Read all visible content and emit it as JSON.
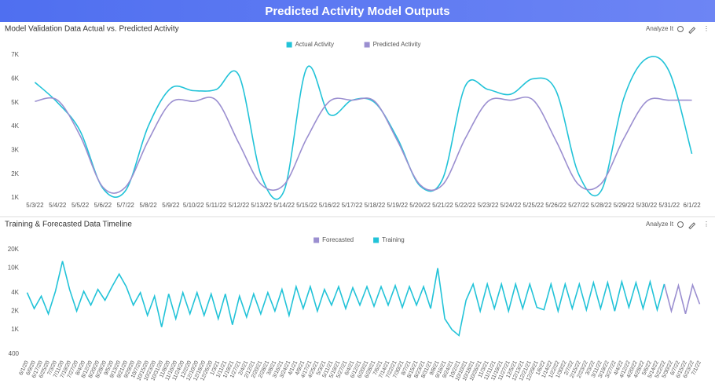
{
  "header": {
    "title": "Predicted Activity Model Outputs"
  },
  "toolbar": {
    "analyze": "Analyze It"
  },
  "chart_data": [
    {
      "type": "line",
      "title": "Model Validation Data Actual vs. Predicted Activity",
      "smooth": true,
      "grid": false,
      "categories": [
        "5/3/22",
        "5/4/22",
        "5/5/22",
        "5/6/22",
        "5/7/22",
        "5/8/22",
        "5/9/22",
        "5/10/22",
        "5/11/22",
        "5/12/22",
        "5/13/22",
        "5/14/22",
        "5/15/22",
        "5/16/22",
        "5/17/22",
        "5/18/22",
        "5/19/22",
        "5/20/22",
        "5/21/22",
        "5/22/22",
        "5/23/22",
        "5/24/22",
        "5/25/22",
        "5/26/22",
        "5/27/22",
        "5/28/22",
        "5/29/22",
        "5/30/22",
        "5/31/22",
        "6/1/22"
      ],
      "series": [
        {
          "name": "Actual Activity",
          "color": "#22c3d8",
          "values": [
            5850,
            5000,
            3800,
            1400,
            1300,
            4000,
            5600,
            5500,
            5550,
            6150,
            1900,
            1300,
            6450,
            4500,
            5100,
            5000,
            3500,
            1500,
            1800,
            5700,
            5550,
            5350,
            6000,
            5500,
            2000,
            1300,
            5200,
            6850,
            6300,
            2850
          ]
        },
        {
          "name": "Predicted Activity",
          "color": "#9b8fd0",
          "values": [
            5050,
            5100,
            3600,
            1450,
            1450,
            3400,
            5000,
            5050,
            5100,
            3300,
            1550,
            1550,
            3500,
            5050,
            5100,
            5050,
            3400,
            1550,
            1550,
            3500,
            5050,
            5100,
            5100,
            3400,
            1550,
            1600,
            3500,
            5050,
            5100,
            5100
          ]
        }
      ],
      "ylim": [
        1000,
        7000
      ],
      "yticks": [
        {
          "value": 1000,
          "label": "1K"
        },
        {
          "value": 2000,
          "label": "2K"
        },
        {
          "value": 3000,
          "label": "3K"
        },
        {
          "value": 4000,
          "label": "4K"
        },
        {
          "value": 5000,
          "label": "5K"
        },
        {
          "value": 6000,
          "label": "6K"
        },
        {
          "value": 7000,
          "label": "7K"
        }
      ]
    },
    {
      "type": "line",
      "title": "Training & Forecasted Data Timeline",
      "log_y": true,
      "smooth": false,
      "grid": false,
      "categories": [
        "6/1/20",
        "6/9/20",
        "6/17/20",
        "6/25/20",
        "7/3/20",
        "7/11/20",
        "7/19/20",
        "7/27/20",
        "8/4/20",
        "8/12/20",
        "8/20/20",
        "8/28/20",
        "9/5/20",
        "9/13/20",
        "9/21/20",
        "9/29/20",
        "10/7/20",
        "10/15/20",
        "10/23/20",
        "10/31/20",
        "11/8/20",
        "11/16/20",
        "11/24/20",
        "12/2/20",
        "12/10/20",
        "12/18/20",
        "12/26/20",
        "1/3/21",
        "1/11/21",
        "1/19/21",
        "1/27/21",
        "2/4/21",
        "2/12/21",
        "2/20/21",
        "2/28/21",
        "3/8/21",
        "3/16/21",
        "3/24/21",
        "4/1/21",
        "4/9/21",
        "4/17/21",
        "4/25/21",
        "5/3/21",
        "5/11/21",
        "5/19/21",
        "5/27/21",
        "6/4/21",
        "6/12/21",
        "6/20/21",
        "6/28/21",
        "7/6/21",
        "7/14/21",
        "7/22/21",
        "7/30/21",
        "8/7/21",
        "8/15/21",
        "8/23/21",
        "8/31/21",
        "9/8/21",
        "9/16/21",
        "9/24/21",
        "10/2/21",
        "10/10/21",
        "10/18/21",
        "10/26/21",
        "11/3/21",
        "11/11/21",
        "11/19/21",
        "11/27/21",
        "12/5/21",
        "12/13/21",
        "12/21/21",
        "12/29/21",
        "1/6/22",
        "1/14/22",
        "1/22/22",
        "1/30/22",
        "2/7/22",
        "2/15/22",
        "2/23/22",
        "3/3/22",
        "3/11/22",
        "3/19/22",
        "3/27/22",
        "4/4/22",
        "4/12/22",
        "4/20/22",
        "4/28/22",
        "5/6/22",
        "5/14/22",
        "5/22/22",
        "5/30/22",
        "6/7/22",
        "6/15/22",
        "6/23/22",
        "7/1/22"
      ],
      "series": [
        {
          "name": "Forecasted",
          "color": "#9b8fd0",
          "values": [
            null,
            null,
            null,
            null,
            null,
            null,
            null,
            null,
            null,
            null,
            null,
            null,
            null,
            null,
            null,
            null,
            null,
            null,
            null,
            null,
            null,
            null,
            null,
            null,
            null,
            null,
            null,
            null,
            null,
            null,
            null,
            null,
            null,
            null,
            null,
            null,
            null,
            null,
            null,
            null,
            null,
            null,
            null,
            null,
            null,
            null,
            null,
            null,
            null,
            null,
            null,
            null,
            null,
            null,
            null,
            null,
            null,
            null,
            null,
            null,
            null,
            null,
            null,
            null,
            null,
            null,
            null,
            null,
            null,
            null,
            null,
            null,
            null,
            null,
            null,
            null,
            null,
            null,
            null,
            null,
            null,
            null,
            null,
            null,
            null,
            null,
            null,
            null,
            null,
            null,
            5500,
            2000,
            5200,
            1800,
            5300,
            2600
          ]
        },
        {
          "name": "Training",
          "color": "#22c3d8",
          "values": [
            4000,
            2200,
            3500,
            1800,
            4200,
            13000,
            4500,
            2000,
            4200,
            2500,
            4500,
            3000,
            5000,
            8000,
            5000,
            2500,
            4000,
            1700,
            3500,
            1100,
            3800,
            1500,
            4000,
            1800,
            4000,
            1700,
            3800,
            1500,
            3800,
            1200,
            3500,
            1600,
            3800,
            1800,
            4000,
            2000,
            4500,
            1700,
            5000,
            2200,
            5000,
            2000,
            4500,
            2500,
            5000,
            2200,
            4800,
            2500,
            5000,
            2400,
            5000,
            2500,
            5200,
            2300,
            5000,
            2500,
            5000,
            2200,
            10000,
            1500,
            1000,
            800,
            3000,
            5500,
            2000,
            5500,
            2200,
            5500,
            2000,
            5500,
            2200,
            5500,
            2300,
            2100,
            5500,
            2000,
            5500,
            2200,
            5500,
            2100,
            5800,
            2200,
            5800,
            2000,
            6000,
            2300,
            5800,
            2200,
            6000,
            2100,
            5500,
            null,
            null,
            null,
            null,
            null
          ]
        }
      ],
      "ylim": [
        400,
        20000
      ],
      "yticks": [
        400,
        {
          "value": 1000,
          "label": "1K"
        },
        {
          "value": 2000,
          "label": "2K"
        },
        {
          "value": 4000,
          "label": "4K"
        },
        {
          "value": 10000,
          "label": "10K"
        },
        {
          "value": 20000,
          "label": "20K"
        }
      ]
    }
  ]
}
